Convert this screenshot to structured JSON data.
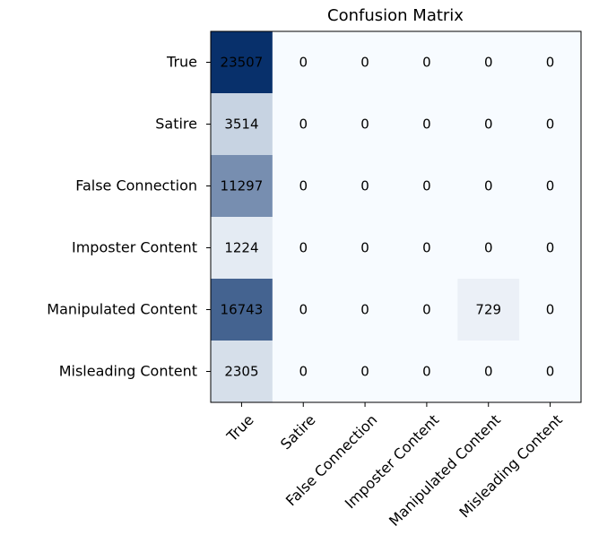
{
  "chart_data": {
    "type": "heatmap",
    "title": "Confusion Matrix",
    "colormap": "Blues",
    "colors": {
      "min": "#f7fbff",
      "max": "#08306b",
      "text": "#000000",
      "axis": "#000000"
    },
    "vmax": 23507,
    "rows": [
      "True",
      "Satire",
      "False Connection",
      "Imposter Content",
      "Manipulated Content",
      "Misleading Content"
    ],
    "columns": [
      "True",
      "Satire",
      "False Connection",
      "Imposter Content",
      "Manipulated Content",
      "Misleading Content"
    ],
    "values": [
      [
        23507,
        0,
        0,
        0,
        0,
        0
      ],
      [
        3514,
        0,
        0,
        0,
        0,
        0
      ],
      [
        11297,
        0,
        0,
        0,
        0,
        0
      ],
      [
        1224,
        0,
        0,
        0,
        0,
        0
      ],
      [
        16743,
        0,
        0,
        0,
        729,
        0
      ],
      [
        2305,
        0,
        0,
        0,
        0,
        0
      ]
    ],
    "cell_labels": [
      [
        "23507",
        "0",
        "0",
        "0",
        "0",
        "0"
      ],
      [
        "3514",
        "0",
        "0",
        "0",
        "0",
        "0"
      ],
      [
        "11297",
        "0",
        "0",
        "0",
        "0",
        "0"
      ],
      [
        "1224",
        "0",
        "0",
        "0",
        "0",
        "0"
      ],
      [
        "16743",
        "0",
        "0",
        "0",
        "729",
        "0"
      ],
      [
        "2305",
        "0",
        "0",
        "0",
        "0",
        "0"
      ]
    ],
    "xlabel": "",
    "ylabel": "",
    "x_tick_rotation_deg": 45
  }
}
